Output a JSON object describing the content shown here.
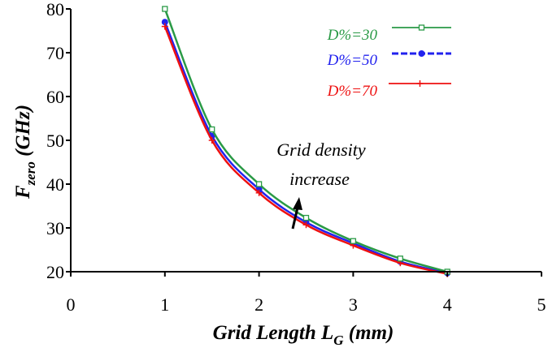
{
  "chart_data": {
    "type": "line",
    "title": "",
    "xlabel_main": "Grid Length L",
    "xlabel_sub": "G",
    "xlabel_unit": " (mm)",
    "ylabel_main": "F",
    "ylabel_sub": "zero",
    "ylabel_unit": " (GHz)",
    "xlim": [
      0,
      5
    ],
    "ylim": [
      20,
      80
    ],
    "xticks": [
      0,
      1,
      2,
      3,
      4,
      5
    ],
    "yticks": [
      20,
      30,
      40,
      50,
      60,
      70,
      80
    ],
    "grid": false,
    "legend_position": "top-right",
    "annotation": {
      "line1": "Grid density",
      "line2": "increase"
    },
    "series": [
      {
        "name": "D%=30",
        "color": "#2a9a46",
        "marker": "square-open",
        "line_style": "solid",
        "x": [
          1,
          1.5,
          2,
          2.5,
          3,
          3.5,
          4
        ],
        "y": [
          80,
          52.5,
          40,
          32.3,
          27,
          23,
          20
        ]
      },
      {
        "name": "D%=50",
        "color": "#2222ee",
        "marker": "circle-filled",
        "line_style": "dashed",
        "x": [
          1,
          1.5,
          2,
          2.5,
          3,
          3.5,
          4
        ],
        "y": [
          77,
          51,
          38.8,
          31.3,
          26.5,
          22.3,
          19.7
        ]
      },
      {
        "name": "D%=70",
        "color": "#ee1111",
        "marker": "plus",
        "line_style": "solid",
        "x": [
          1,
          1.5,
          2,
          2.5,
          3,
          3.5,
          4
        ],
        "y": [
          76,
          50,
          38,
          30.7,
          26,
          22,
          19.5
        ]
      }
    ]
  }
}
